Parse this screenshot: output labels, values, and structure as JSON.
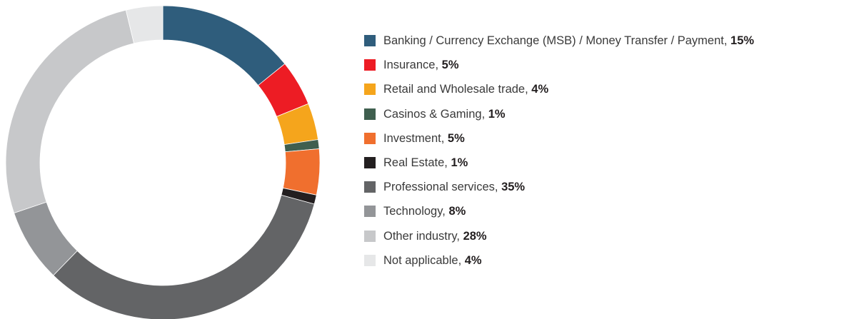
{
  "chart_data": {
    "type": "donut",
    "categories": [
      "Banking / Currency Exchange (MSB) / Money Transfer / Payment",
      "Insurance",
      "Retail and Wholesale trade",
      "Casinos & Gaming",
      "Investment",
      "Real Estate",
      "Professional services",
      "Technology",
      "Other industry",
      "Not applicable"
    ],
    "values": [
      15,
      5,
      4,
      1,
      5,
      1,
      35,
      8,
      28,
      4
    ],
    "value_labels": [
      "15%",
      "5%",
      "4%",
      "1%",
      "5%",
      "1%",
      "35%",
      "8%",
      "28%",
      "4%"
    ],
    "colors": [
      "#2f5d7c",
      "#ed1c24",
      "#f5a51c",
      "#3f5f4f",
      "#f06f2e",
      "#231f20",
      "#636466",
      "#939598",
      "#c7c8ca",
      "#e6e7e8"
    ]
  }
}
